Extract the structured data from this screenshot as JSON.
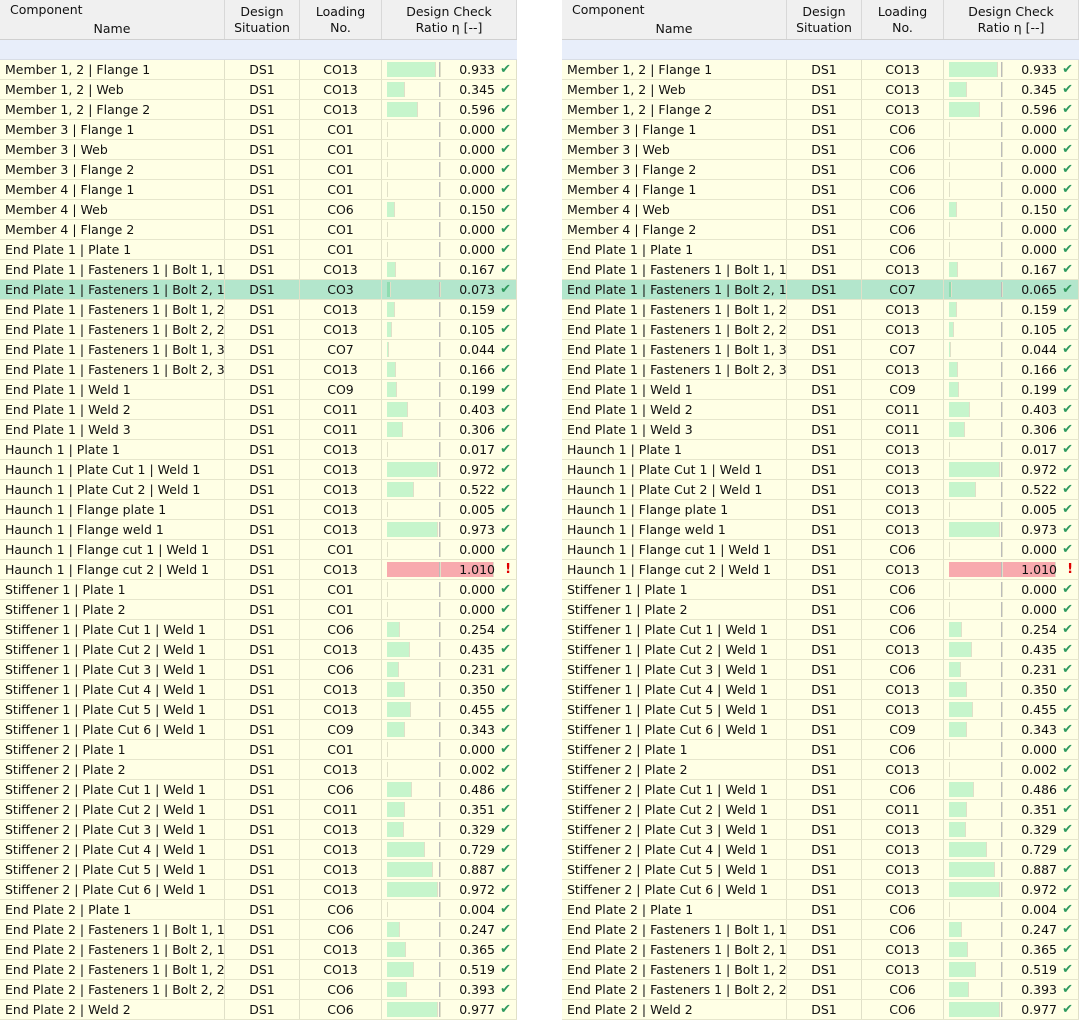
{
  "header": {
    "component": "Component",
    "name": "Name",
    "design": "Design",
    "situation": "Situation",
    "loading": "Loading",
    "no": "No.",
    "check": "Design Check",
    "ratio": "Ratio η [--]"
  },
  "colors": {
    "bar": "#c6f5cc",
    "bar_over": "#f8aaae",
    "selected_row": "#b3e6cc",
    "ok": "#2e9a5e",
    "error": "#e00000"
  },
  "icons": {
    "ok": "checkmark-icon",
    "error": "exclamation-icon"
  },
  "tables": [
    {
      "selected_index": 11,
      "rows": [
        [
          "Member 1, 2 | Flange 1",
          "DS1",
          "CO13",
          "0.933"
        ],
        [
          "Member 1, 2 | Web",
          "DS1",
          "CO13",
          "0.345"
        ],
        [
          "Member 1, 2 | Flange 2",
          "DS1",
          "CO13",
          "0.596"
        ],
        [
          "Member 3 | Flange 1",
          "DS1",
          "CO1",
          "0.000"
        ],
        [
          "Member 3 | Web",
          "DS1",
          "CO1",
          "0.000"
        ],
        [
          "Member 3 | Flange 2",
          "DS1",
          "CO1",
          "0.000"
        ],
        [
          "Member 4 | Flange 1",
          "DS1",
          "CO1",
          "0.000"
        ],
        [
          "Member 4 | Web",
          "DS1",
          "CO6",
          "0.150"
        ],
        [
          "Member 4 | Flange 2",
          "DS1",
          "CO1",
          "0.000"
        ],
        [
          "End Plate 1 | Plate 1",
          "DS1",
          "CO1",
          "0.000"
        ],
        [
          "End Plate 1 | Fasteners 1 | Bolt 1, 1",
          "DS1",
          "CO13",
          "0.167"
        ],
        [
          "End Plate 1 | Fasteners 1 | Bolt 2, 1",
          "DS1",
          "CO3",
          "0.073"
        ],
        [
          "End Plate 1 | Fasteners 1 | Bolt 1, 2",
          "DS1",
          "CO13",
          "0.159"
        ],
        [
          "End Plate 1 | Fasteners 1 | Bolt 2, 2",
          "DS1",
          "CO13",
          "0.105"
        ],
        [
          "End Plate 1 | Fasteners 1 | Bolt 1, 3",
          "DS1",
          "CO7",
          "0.044"
        ],
        [
          "End Plate 1 | Fasteners 1 | Bolt 2, 3",
          "DS1",
          "CO13",
          "0.166"
        ],
        [
          "End Plate 1 | Weld 1",
          "DS1",
          "CO9",
          "0.199"
        ],
        [
          "End Plate 1 | Weld 2",
          "DS1",
          "CO11",
          "0.403"
        ],
        [
          "End Plate 1 | Weld 3",
          "DS1",
          "CO11",
          "0.306"
        ],
        [
          "Haunch 1 | Plate 1",
          "DS1",
          "CO13",
          "0.017"
        ],
        [
          "Haunch 1 | Plate Cut 1 | Weld 1",
          "DS1",
          "CO13",
          "0.972"
        ],
        [
          "Haunch 1 | Plate Cut 2 | Weld 1",
          "DS1",
          "CO13",
          "0.522"
        ],
        [
          "Haunch 1 | Flange plate 1",
          "DS1",
          "CO13",
          "0.005"
        ],
        [
          "Haunch 1 | Flange weld 1",
          "DS1",
          "CO13",
          "0.973"
        ],
        [
          "Haunch 1 | Flange cut 1 | Weld 1",
          "DS1",
          "CO1",
          "0.000"
        ],
        [
          "Haunch 1 | Flange cut 2 | Weld 1",
          "DS1",
          "CO13",
          "1.010"
        ],
        [
          "Stiffener 1 | Plate 1",
          "DS1",
          "CO1",
          "0.000"
        ],
        [
          "Stiffener 1 | Plate 2",
          "DS1",
          "CO1",
          "0.000"
        ],
        [
          "Stiffener 1 | Plate Cut 1 | Weld 1",
          "DS1",
          "CO6",
          "0.254"
        ],
        [
          "Stiffener 1 | Plate Cut 2 | Weld 1",
          "DS1",
          "CO13",
          "0.435"
        ],
        [
          "Stiffener 1 | Plate Cut 3 | Weld 1",
          "DS1",
          "CO6",
          "0.231"
        ],
        [
          "Stiffener 1 | Plate Cut 4 | Weld 1",
          "DS1",
          "CO13",
          "0.350"
        ],
        [
          "Stiffener 1 | Plate Cut 5 | Weld 1",
          "DS1",
          "CO13",
          "0.455"
        ],
        [
          "Stiffener 1 | Plate Cut 6 | Weld 1",
          "DS1",
          "CO9",
          "0.343"
        ],
        [
          "Stiffener 2 | Plate 1",
          "DS1",
          "CO1",
          "0.000"
        ],
        [
          "Stiffener 2 | Plate 2",
          "DS1",
          "CO13",
          "0.002"
        ],
        [
          "Stiffener 2 | Plate Cut 1 | Weld 1",
          "DS1",
          "CO6",
          "0.486"
        ],
        [
          "Stiffener 2 | Plate Cut 2 | Weld 1",
          "DS1",
          "CO11",
          "0.351"
        ],
        [
          "Stiffener 2 | Plate Cut 3 | Weld 1",
          "DS1",
          "CO13",
          "0.329"
        ],
        [
          "Stiffener 2 | Plate Cut 4 | Weld 1",
          "DS1",
          "CO13",
          "0.729"
        ],
        [
          "Stiffener 2 | Plate Cut 5 | Weld 1",
          "DS1",
          "CO13",
          "0.887"
        ],
        [
          "Stiffener 2 | Plate Cut 6 | Weld 1",
          "DS1",
          "CO13",
          "0.972"
        ],
        [
          "End Plate 2 | Plate 1",
          "DS1",
          "CO6",
          "0.004"
        ],
        [
          "End Plate 2 | Fasteners 1 | Bolt 1, 1",
          "DS1",
          "CO6",
          "0.247"
        ],
        [
          "End Plate 2 | Fasteners 1 | Bolt 2, 1",
          "DS1",
          "CO13",
          "0.365"
        ],
        [
          "End Plate 2 | Fasteners 1 | Bolt 1, 2",
          "DS1",
          "CO13",
          "0.519"
        ],
        [
          "End Plate 2 | Fasteners 1 | Bolt 2, 2",
          "DS1",
          "CO6",
          "0.393"
        ],
        [
          "End Plate 2 | Weld 2",
          "DS1",
          "CO6",
          "0.977"
        ]
      ]
    },
    {
      "selected_index": 11,
      "rows": [
        [
          "Member 1, 2 | Flange 1",
          "DS1",
          "CO13",
          "0.933"
        ],
        [
          "Member 1, 2 | Web",
          "DS1",
          "CO13",
          "0.345"
        ],
        [
          "Member 1, 2 | Flange 2",
          "DS1",
          "CO13",
          "0.596"
        ],
        [
          "Member 3 | Flange 1",
          "DS1",
          "CO6",
          "0.000"
        ],
        [
          "Member 3 | Web",
          "DS1",
          "CO6",
          "0.000"
        ],
        [
          "Member 3 | Flange 2",
          "DS1",
          "CO6",
          "0.000"
        ],
        [
          "Member 4 | Flange 1",
          "DS1",
          "CO6",
          "0.000"
        ],
        [
          "Member 4 | Web",
          "DS1",
          "CO6",
          "0.150"
        ],
        [
          "Member 4 | Flange 2",
          "DS1",
          "CO6",
          "0.000"
        ],
        [
          "End Plate 1 | Plate 1",
          "DS1",
          "CO6",
          "0.000"
        ],
        [
          "End Plate 1 | Fasteners 1 | Bolt 1, 1",
          "DS1",
          "CO13",
          "0.167"
        ],
        [
          "End Plate 1 | Fasteners 1 | Bolt 2, 1",
          "DS1",
          "CO7",
          "0.065"
        ],
        [
          "End Plate 1 | Fasteners 1 | Bolt 1, 2",
          "DS1",
          "CO13",
          "0.159"
        ],
        [
          "End Plate 1 | Fasteners 1 | Bolt 2, 2",
          "DS1",
          "CO13",
          "0.105"
        ],
        [
          "End Plate 1 | Fasteners 1 | Bolt 1, 3",
          "DS1",
          "CO7",
          "0.044"
        ],
        [
          "End Plate 1 | Fasteners 1 | Bolt 2, 3",
          "DS1",
          "CO13",
          "0.166"
        ],
        [
          "End Plate 1 | Weld 1",
          "DS1",
          "CO9",
          "0.199"
        ],
        [
          "End Plate 1 | Weld 2",
          "DS1",
          "CO11",
          "0.403"
        ],
        [
          "End Plate 1 | Weld 3",
          "DS1",
          "CO11",
          "0.306"
        ],
        [
          "Haunch 1 | Plate 1",
          "DS1",
          "CO13",
          "0.017"
        ],
        [
          "Haunch 1 | Plate Cut 1 | Weld 1",
          "DS1",
          "CO13",
          "0.972"
        ],
        [
          "Haunch 1 | Plate Cut 2 | Weld 1",
          "DS1",
          "CO13",
          "0.522"
        ],
        [
          "Haunch 1 | Flange plate 1",
          "DS1",
          "CO13",
          "0.005"
        ],
        [
          "Haunch 1 | Flange weld 1",
          "DS1",
          "CO13",
          "0.973"
        ],
        [
          "Haunch 1 | Flange cut 1 | Weld 1",
          "DS1",
          "CO6",
          "0.000"
        ],
        [
          "Haunch 1 | Flange cut 2 | Weld 1",
          "DS1",
          "CO13",
          "1.010"
        ],
        [
          "Stiffener 1 | Plate 1",
          "DS1",
          "CO6",
          "0.000"
        ],
        [
          "Stiffener 1 | Plate 2",
          "DS1",
          "CO6",
          "0.000"
        ],
        [
          "Stiffener 1 | Plate Cut 1 | Weld 1",
          "DS1",
          "CO6",
          "0.254"
        ],
        [
          "Stiffener 1 | Plate Cut 2 | Weld 1",
          "DS1",
          "CO13",
          "0.435"
        ],
        [
          "Stiffener 1 | Plate Cut 3 | Weld 1",
          "DS1",
          "CO6",
          "0.231"
        ],
        [
          "Stiffener 1 | Plate Cut 4 | Weld 1",
          "DS1",
          "CO13",
          "0.350"
        ],
        [
          "Stiffener 1 | Plate Cut 5 | Weld 1",
          "DS1",
          "CO13",
          "0.455"
        ],
        [
          "Stiffener 1 | Plate Cut 6 | Weld 1",
          "DS1",
          "CO9",
          "0.343"
        ],
        [
          "Stiffener 2 | Plate 1",
          "DS1",
          "CO6",
          "0.000"
        ],
        [
          "Stiffener 2 | Plate 2",
          "DS1",
          "CO13",
          "0.002"
        ],
        [
          "Stiffener 2 | Plate Cut 1 | Weld 1",
          "DS1",
          "CO6",
          "0.486"
        ],
        [
          "Stiffener 2 | Plate Cut 2 | Weld 1",
          "DS1",
          "CO11",
          "0.351"
        ],
        [
          "Stiffener 2 | Plate Cut 3 | Weld 1",
          "DS1",
          "CO13",
          "0.329"
        ],
        [
          "Stiffener 2 | Plate Cut 4 | Weld 1",
          "DS1",
          "CO13",
          "0.729"
        ],
        [
          "Stiffener 2 | Plate Cut 5 | Weld 1",
          "DS1",
          "CO13",
          "0.887"
        ],
        [
          "Stiffener 2 | Plate Cut 6 | Weld 1",
          "DS1",
          "CO13",
          "0.972"
        ],
        [
          "End Plate 2 | Plate 1",
          "DS1",
          "CO6",
          "0.004"
        ],
        [
          "End Plate 2 | Fasteners 1 | Bolt 1, 1",
          "DS1",
          "CO6",
          "0.247"
        ],
        [
          "End Plate 2 | Fasteners 1 | Bolt 2, 1",
          "DS1",
          "CO13",
          "0.365"
        ],
        [
          "End Plate 2 | Fasteners 1 | Bolt 1, 2",
          "DS1",
          "CO13",
          "0.519"
        ],
        [
          "End Plate 2 | Fasteners 1 | Bolt 2, 2",
          "DS1",
          "CO6",
          "0.393"
        ],
        [
          "End Plate 2 | Weld 2",
          "DS1",
          "CO6",
          "0.977"
        ]
      ]
    }
  ]
}
